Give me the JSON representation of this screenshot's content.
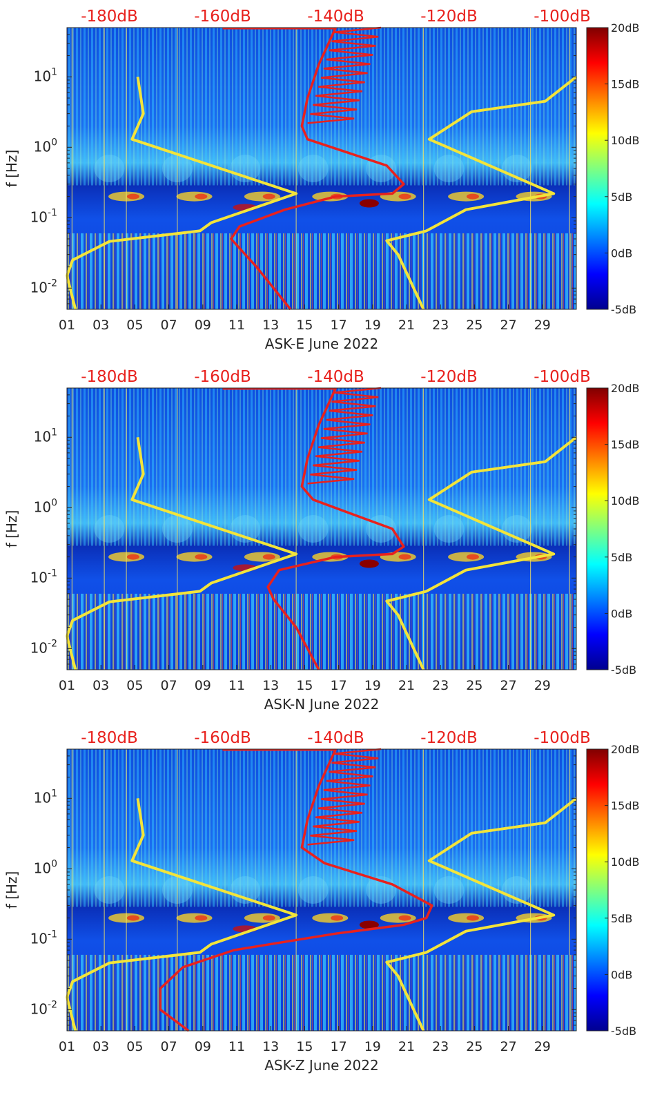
{
  "chart_data": [
    {
      "type": "heatmap",
      "title": "",
      "xlabel": "ASK-E June 2022",
      "ylabel": "f [Hz]",
      "x_ticks": [
        "01",
        "03",
        "05",
        "07",
        "09",
        "11",
        "13",
        "15",
        "17",
        "19",
        "21",
        "23",
        "25",
        "27",
        "29"
      ],
      "x_range_days": [
        1,
        31
      ],
      "y_scale": "log",
      "y_range_hz": [
        0.005,
        50
      ],
      "y_tick_values": [
        0.01,
        0.1,
        1,
        10
      ],
      "top_axis_labels": [
        "-180dB",
        "-160dB",
        "-140dB",
        "-120dB",
        "-100dB"
      ],
      "top_axis_range_db": [
        -187.5,
        -97.5
      ],
      "colorbar": {
        "labels": [
          "20dB",
          "15dB",
          "10dB",
          "5dB",
          "0dB",
          "-5dB"
        ],
        "range_db": [
          -5,
          20
        ]
      },
      "series": [
        {
          "name": "reference noise model (yellow, top dB axis)",
          "color": "#f3e43a",
          "points": [
            [
              -175,
              10
            ],
            [
              -174,
              3
            ],
            [
              -176,
              1.3
            ],
            [
              -147,
              0.22
            ],
            [
              -162,
              0.085
            ],
            [
              -164,
              0.065
            ],
            [
              -180,
              0.046
            ],
            [
              -186.5,
              0.025
            ],
            [
              -187.5,
              0.015
            ],
            [
              -186,
              0.005
            ]
          ]
        },
        {
          "name": "reference noise model 2 (yellow, top dB axis)",
          "color": "#f3e43a",
          "points": [
            [
              -97.5,
              10
            ],
            [
              -103,
              4.5
            ],
            [
              -116,
              3.2
            ],
            [
              -123.5,
              1.3
            ],
            [
              -101.5,
              0.22
            ],
            [
              -117,
              0.13
            ],
            [
              -124,
              0.065
            ],
            [
              -131,
              0.047
            ],
            [
              -129,
              0.03
            ],
            [
              -124.5,
              0.005
            ]
          ]
        },
        {
          "name": "ASK-E PSD (red, top dB axis)",
          "color": "#e8211d",
          "points": [
            [
              -140,
              50
            ],
            [
              -143,
              15
            ],
            [
              -145,
              5
            ],
            [
              -146,
              2
            ],
            [
              -145,
              1.3
            ],
            [
              -131,
              0.55
            ],
            [
              -128,
              0.3
            ],
            [
              -130,
              0.22
            ],
            [
              -140,
              0.2
            ],
            [
              -149,
              0.13
            ],
            [
              -157,
              0.075
            ],
            [
              -158.5,
              0.05
            ],
            [
              -154,
              0.02
            ],
            [
              -148,
              0.005
            ]
          ]
        }
      ]
    },
    {
      "type": "heatmap",
      "title": "",
      "xlabel": "ASK-N June 2022",
      "ylabel": "f [Hz]",
      "x_ticks": [
        "01",
        "03",
        "05",
        "07",
        "09",
        "11",
        "13",
        "15",
        "17",
        "19",
        "21",
        "23",
        "25",
        "27",
        "29"
      ],
      "x_range_days": [
        1,
        31
      ],
      "y_scale": "log",
      "y_range_hz": [
        0.005,
        50
      ],
      "y_tick_values": [
        0.01,
        0.1,
        1,
        10
      ],
      "top_axis_labels": [
        "-180dB",
        "-160dB",
        "-140dB",
        "-120dB",
        "-100dB"
      ],
      "top_axis_range_db": [
        -187.5,
        -97.5
      ],
      "colorbar": {
        "labels": [
          "20dB",
          "15dB",
          "10dB",
          "5dB",
          "0dB",
          "-5dB"
        ],
        "range_db": [
          -5,
          20
        ]
      },
      "series": [
        {
          "name": "reference noise model (yellow, top dB axis)",
          "color": "#f3e43a",
          "points": [
            [
              -175,
              10
            ],
            [
              -174,
              3
            ],
            [
              -176,
              1.3
            ],
            [
              -147,
              0.22
            ],
            [
              -162,
              0.085
            ],
            [
              -164,
              0.065
            ],
            [
              -180,
              0.046
            ],
            [
              -186.5,
              0.025
            ],
            [
              -187.5,
              0.015
            ],
            [
              -186,
              0.005
            ]
          ]
        },
        {
          "name": "reference noise model 2 (yellow, top dB axis)",
          "color": "#f3e43a",
          "points": [
            [
              -97.5,
              10
            ],
            [
              -103,
              4.5
            ],
            [
              -116,
              3.2
            ],
            [
              -123.5,
              1.3
            ],
            [
              -101.5,
              0.22
            ],
            [
              -117,
              0.13
            ],
            [
              -124,
              0.065
            ],
            [
              -131,
              0.047
            ],
            [
              -129,
              0.03
            ],
            [
              -124.5,
              0.005
            ]
          ]
        },
        {
          "name": "ASK-N PSD (red, top dB axis)",
          "color": "#e8211d",
          "points": [
            [
              -140,
              50
            ],
            [
              -143,
              15
            ],
            [
              -145,
              5
            ],
            [
              -146,
              2
            ],
            [
              -144,
              1.3
            ],
            [
              -130,
              0.5
            ],
            [
              -128,
              0.28
            ],
            [
              -130,
              0.22
            ],
            [
              -140,
              0.2
            ],
            [
              -150,
              0.13
            ],
            [
              -152,
              0.075
            ],
            [
              -151,
              0.05
            ],
            [
              -147,
              0.02
            ],
            [
              -143,
              0.005
            ]
          ]
        }
      ]
    },
    {
      "type": "heatmap",
      "title": "",
      "xlabel": "ASK-Z June 2022",
      "ylabel": "f [Hz]",
      "x_ticks": [
        "01",
        "03",
        "05",
        "07",
        "09",
        "11",
        "13",
        "15",
        "17",
        "19",
        "21",
        "23",
        "25",
        "27",
        "29"
      ],
      "x_range_days": [
        1,
        31
      ],
      "y_scale": "log",
      "y_range_hz": [
        0.005,
        50
      ],
      "y_tick_values": [
        0.01,
        0.1,
        1,
        10
      ],
      "top_axis_labels": [
        "-180dB",
        "-160dB",
        "-140dB",
        "-120dB",
        "-100dB"
      ],
      "top_axis_range_db": [
        -187.5,
        -97.5
      ],
      "colorbar": {
        "labels": [
          "20dB",
          "15dB",
          "10dB",
          "5dB",
          "0dB",
          "-5dB"
        ],
        "range_db": [
          -5,
          20
        ]
      },
      "series": [
        {
          "name": "reference noise model (yellow, top dB axis)",
          "color": "#f3e43a",
          "points": [
            [
              -175,
              10
            ],
            [
              -174,
              3
            ],
            [
              -176,
              1.3
            ],
            [
              -147,
              0.22
            ],
            [
              -162,
              0.085
            ],
            [
              -164,
              0.065
            ],
            [
              -180,
              0.046
            ],
            [
              -186.5,
              0.025
            ],
            [
              -187.5,
              0.015
            ],
            [
              -186,
              0.005
            ]
          ]
        },
        {
          "name": "reference noise model 2 (yellow, top dB axis)",
          "color": "#f3e43a",
          "points": [
            [
              -97.5,
              10
            ],
            [
              -103,
              4.5
            ],
            [
              -116,
              3.2
            ],
            [
              -123.5,
              1.3
            ],
            [
              -101.5,
              0.22
            ],
            [
              -117,
              0.13
            ],
            [
              -124,
              0.065
            ],
            [
              -131,
              0.047
            ],
            [
              -129,
              0.03
            ],
            [
              -124.5,
              0.005
            ]
          ]
        },
        {
          "name": "ASK-Z PSD (red, top dB axis)",
          "color": "#e8211d",
          "points": [
            [
              -140,
              50
            ],
            [
              -143,
              15
            ],
            [
              -145,
              5
            ],
            [
              -146,
              2
            ],
            [
              -142,
              1.2
            ],
            [
              -130,
              0.6
            ],
            [
              -123,
              0.3
            ],
            [
              -124,
              0.2
            ],
            [
              -128,
              0.16
            ],
            [
              -140,
              0.12
            ],
            [
              -158,
              0.07
            ],
            [
              -167,
              0.04
            ],
            [
              -171,
              0.02
            ],
            [
              -171,
              0.01
            ],
            [
              -166,
              0.005
            ]
          ]
        }
      ]
    }
  ]
}
